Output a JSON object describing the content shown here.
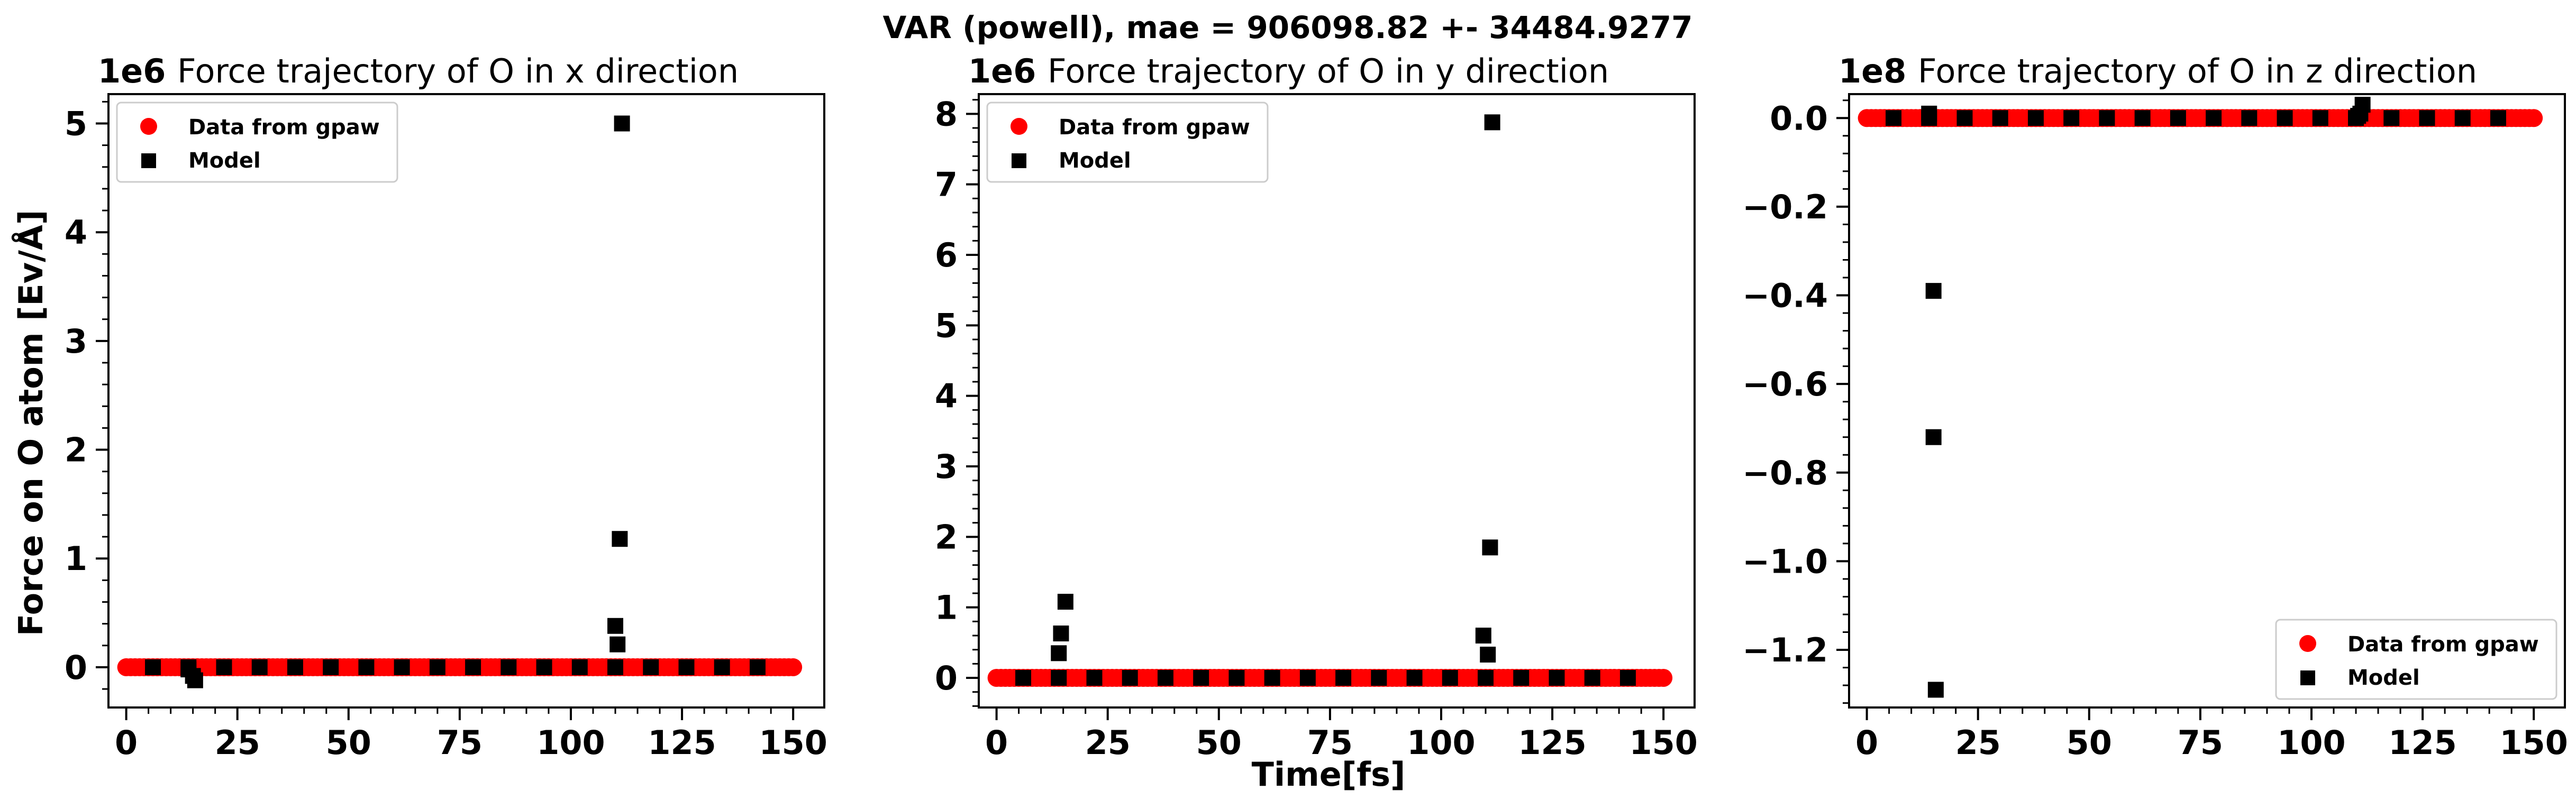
{
  "chart_data": {
    "title": "VAR (powell), mae = 906098.82 +- 34484.9277",
    "xlabel": "Time[fs]",
    "ylabel": "Force on O atom [Ev/Å]",
    "legend": [
      "Data from gpaw",
      "Model"
    ],
    "colors": {
      "gpaw": "#ff0000",
      "model": "#000000"
    },
    "subplots": [
      {
        "type": "scatter",
        "title": "Force trajectory of O in x direction",
        "multiplier": "1e6",
        "xlim": [
          -4,
          157
        ],
        "ylim": [
          -0.37,
          5.27
        ],
        "xticks": [
          0,
          25,
          50,
          75,
          100,
          125,
          150
        ],
        "yticks": [
          0,
          1,
          2,
          3,
          4,
          5
        ],
        "ytick_labels": [
          "0",
          "1",
          "2",
          "3",
          "4",
          "5"
        ],
        "legend_position": "top-left",
        "series": [
          {
            "name": "Data from gpaw",
            "x_start": 0,
            "x_end": 150,
            "x_step": 1,
            "y": 0
          },
          {
            "name": "Model",
            "x_start": 6,
            "x_end": 142,
            "x_step": 8,
            "y": 0,
            "extra_points": [
              [
                14,
                -0.02
              ],
              [
                15,
                -0.08
              ],
              [
                15.5,
                -0.12
              ],
              [
                110,
                0.38
              ],
              [
                110.5,
                0.21
              ],
              [
                111,
                1.18
              ],
              [
                111.5,
                5.0
              ]
            ]
          }
        ]
      },
      {
        "type": "scatter",
        "title": "Force trajectory of O in y direction",
        "multiplier": "1e6",
        "xlim": [
          -4,
          157
        ],
        "ylim": [
          -0.42,
          8.28
        ],
        "xticks": [
          0,
          25,
          50,
          75,
          100,
          125,
          150
        ],
        "yticks": [
          0,
          1,
          2,
          3,
          4,
          5,
          6,
          7,
          8
        ],
        "ytick_labels": [
          "0",
          "1",
          "2",
          "3",
          "4",
          "5",
          "6",
          "7",
          "8"
        ],
        "legend_position": "top-left",
        "series": [
          {
            "name": "Data from gpaw",
            "x_start": 0,
            "x_end": 150,
            "x_step": 1,
            "y": 0
          },
          {
            "name": "Model",
            "x_start": 6,
            "x_end": 142,
            "x_step": 8,
            "y": 0,
            "extra_points": [
              [
                14,
                0.35
              ],
              [
                14.5,
                0.63
              ],
              [
                15.5,
                1.08
              ],
              [
                109.5,
                0.6
              ],
              [
                110.5,
                0.33
              ],
              [
                111,
                1.85
              ],
              [
                111.5,
                7.88
              ]
            ]
          }
        ]
      },
      {
        "type": "scatter",
        "title": "Force trajectory of O in z direction",
        "multiplier": "1e8",
        "xlim": [
          -4,
          157
        ],
        "ylim": [
          -1.33,
          0.054
        ],
        "xticks": [
          0,
          25,
          50,
          75,
          100,
          125,
          150
        ],
        "yticks": [
          0,
          -0.2,
          -0.4,
          -0.6,
          -0.8,
          -1.0,
          -1.2
        ],
        "ytick_labels": [
          "0.0",
          "−0.2",
          "−0.4",
          "−0.6",
          "−0.8",
          "−1.0",
          "−1.2"
        ],
        "legend_position": "bottom-right",
        "series": [
          {
            "name": "Data from gpaw",
            "x_start": 0,
            "x_end": 150,
            "x_step": 1,
            "y": 0
          },
          {
            "name": "Model",
            "x_start": 6,
            "x_end": 142,
            "x_step": 8,
            "y": 0,
            "extra_points": [
              [
                14,
                0.01
              ],
              [
                15,
                -0.39
              ],
              [
                15,
                -0.72
              ],
              [
                15.5,
                -1.29
              ],
              [
                110.5,
                0.005
              ],
              [
                111,
                0.01
              ],
              [
                111.5,
                0.03
              ]
            ]
          }
        ]
      }
    ]
  }
}
